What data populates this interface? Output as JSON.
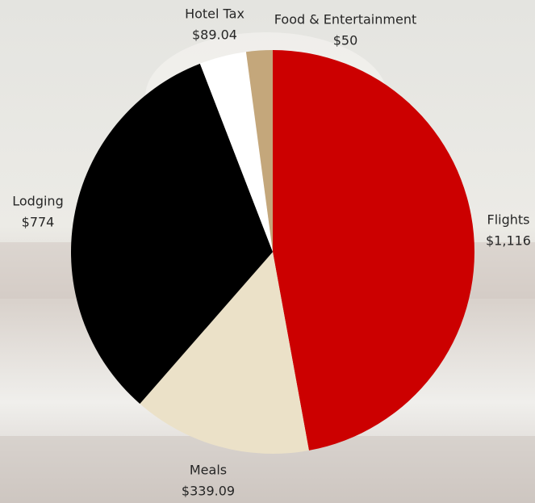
{
  "chart_data": {
    "type": "pie",
    "categories": [
      "Flights",
      "Meals",
      "Lodging",
      "Hotel Tax",
      "Food & Entertainment"
    ],
    "values": [
      1116,
      339.09,
      774,
      89.04,
      50
    ],
    "value_labels": [
      "$1,116",
      "$339.09",
      "$774",
      "$89.04",
      "$50"
    ],
    "colors": [
      "#cc0000",
      "#ebe1c8",
      "#000000",
      "#ffffff",
      "#c4a77b"
    ]
  }
}
